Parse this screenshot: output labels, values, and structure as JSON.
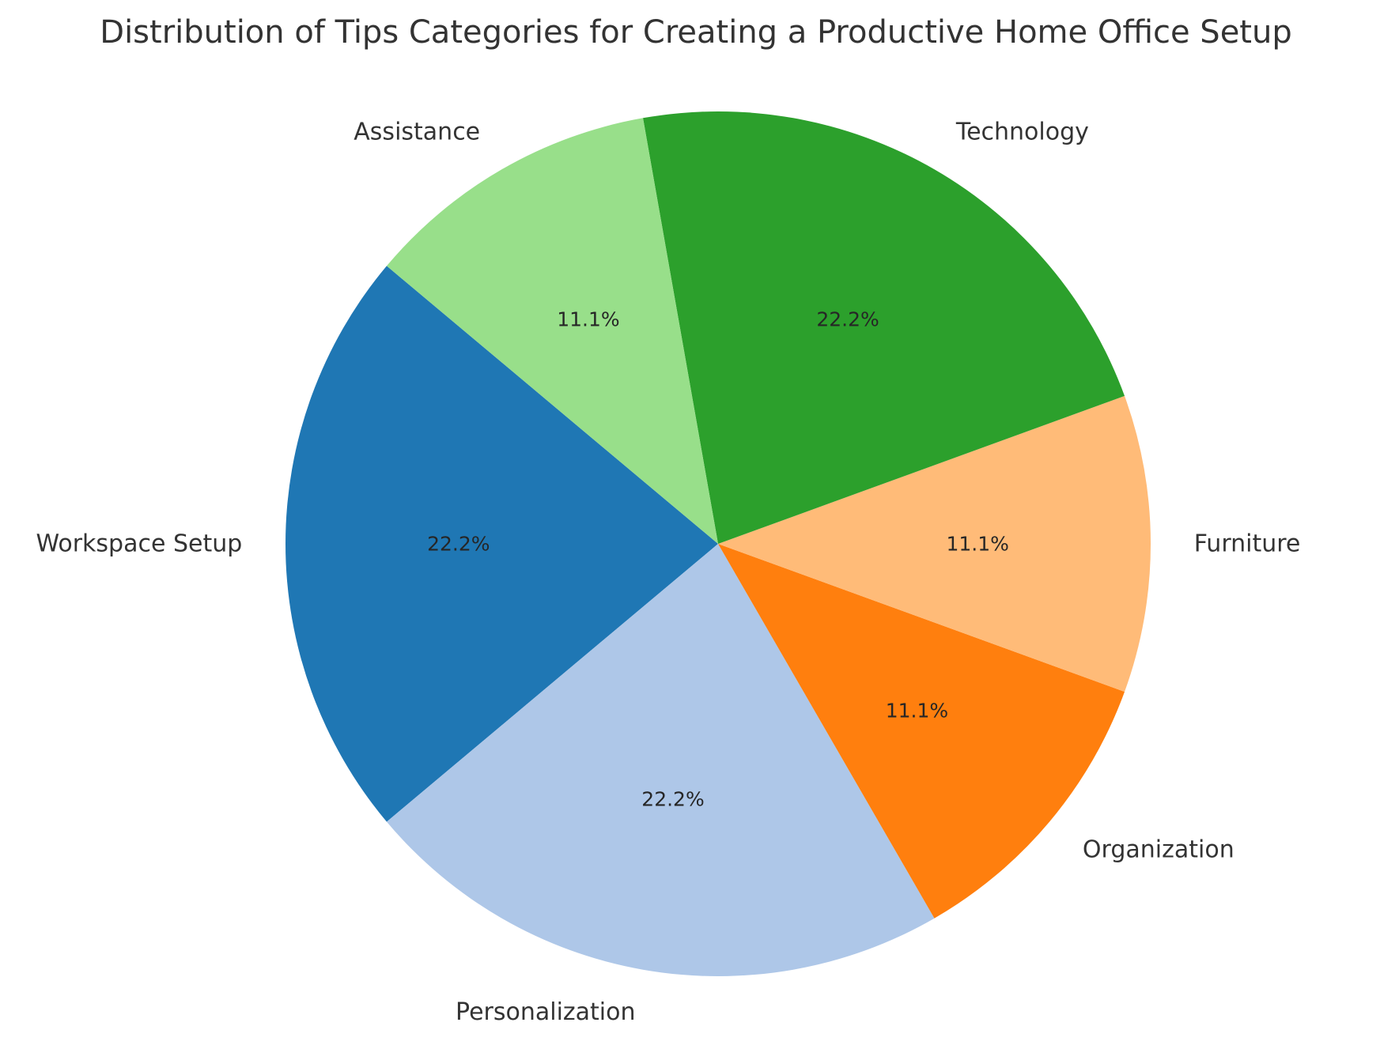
{
  "chart_data": {
    "type": "pie",
    "title": "Distribution of Tips Categories for Creating a Productive Home Office Setup",
    "slices": [
      {
        "label": "Workspace Setup",
        "value": 2,
        "percent_label": "22.2%",
        "color": "#1f77b4"
      },
      {
        "label": "Personalization",
        "value": 2,
        "percent_label": "22.2%",
        "color": "#aec7e8"
      },
      {
        "label": "Organization",
        "value": 1,
        "percent_label": "11.1%",
        "color": "#ff7f0e"
      },
      {
        "label": "Furniture",
        "value": 1,
        "percent_label": "11.1%",
        "color": "#ffbb78"
      },
      {
        "label": "Technology",
        "value": 2,
        "percent_label": "22.2%",
        "color": "#2ca02c"
      },
      {
        "label": "Assistance",
        "value": 1,
        "percent_label": "11.1%",
        "color": "#98df8a"
      }
    ],
    "start_angle_deg": 140,
    "direction": "counterclockwise",
    "legend": "none"
  }
}
